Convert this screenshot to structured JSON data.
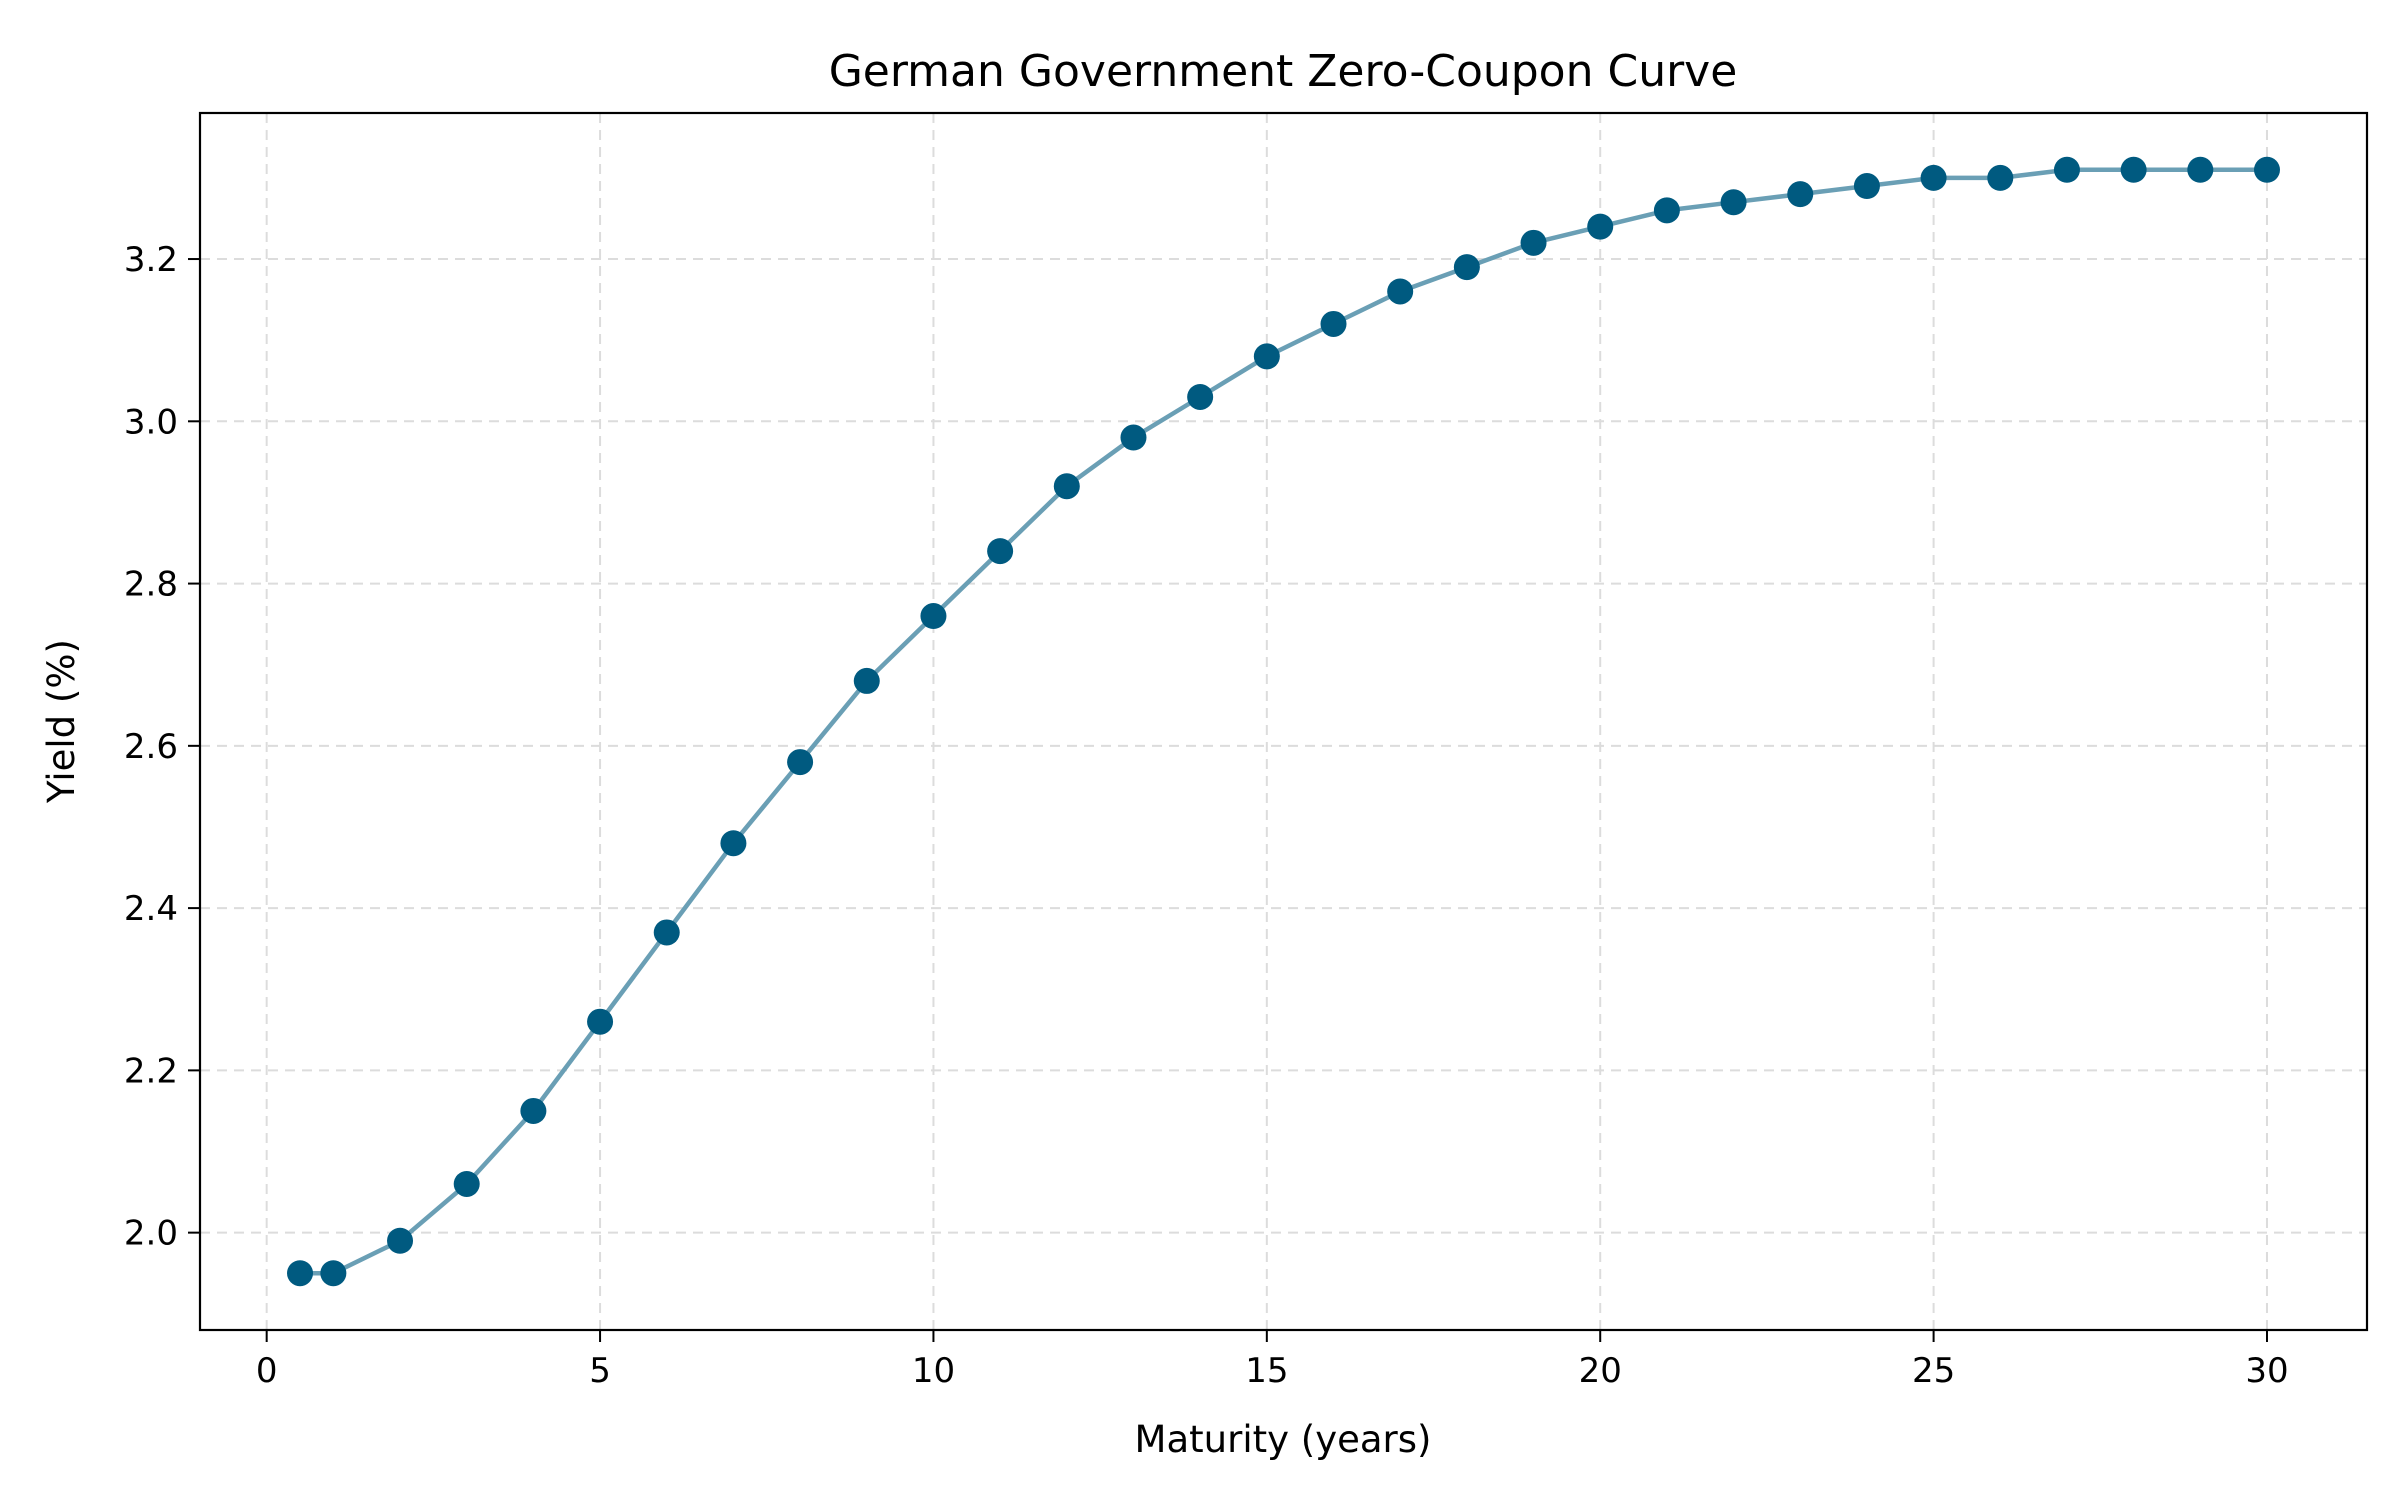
{
  "chart_data": {
    "type": "line",
    "title": "German Government Zero-Coupon Curve",
    "xlabel": "Maturity (years)",
    "ylabel": "Yield (%)",
    "xlim": [
      -1,
      31.5
    ],
    "ylim": [
      1.88,
      3.38
    ],
    "xticks": [
      0,
      5,
      10,
      15,
      20,
      25,
      30
    ],
    "yticks": [
      2.0,
      2.2,
      2.4,
      2.6,
      2.8,
      3.0,
      3.2
    ],
    "ytick_labels": [
      "2.0",
      "2.2",
      "2.4",
      "2.6",
      "2.8",
      "3.0",
      "3.2"
    ],
    "grid": true,
    "colors": {
      "line": "#6a9fb5",
      "marker": "#005a80"
    },
    "series": [
      {
        "x": [
          0.5,
          1,
          2,
          3,
          4,
          5,
          6,
          7,
          8,
          9,
          10,
          11,
          12,
          13,
          14,
          15,
          16,
          17,
          18,
          19,
          20,
          21,
          22,
          23,
          24,
          25,
          26,
          27,
          28,
          29,
          30
        ],
        "values": [
          1.95,
          1.95,
          1.99,
          2.06,
          2.15,
          2.26,
          2.37,
          2.48,
          2.58,
          2.68,
          2.76,
          2.84,
          2.92,
          2.98,
          3.03,
          3.08,
          3.12,
          3.16,
          3.19,
          3.22,
          3.24,
          3.26,
          3.27,
          3.28,
          3.29,
          3.3,
          3.3,
          3.31,
          3.31,
          3.31,
          3.31
        ]
      }
    ]
  }
}
